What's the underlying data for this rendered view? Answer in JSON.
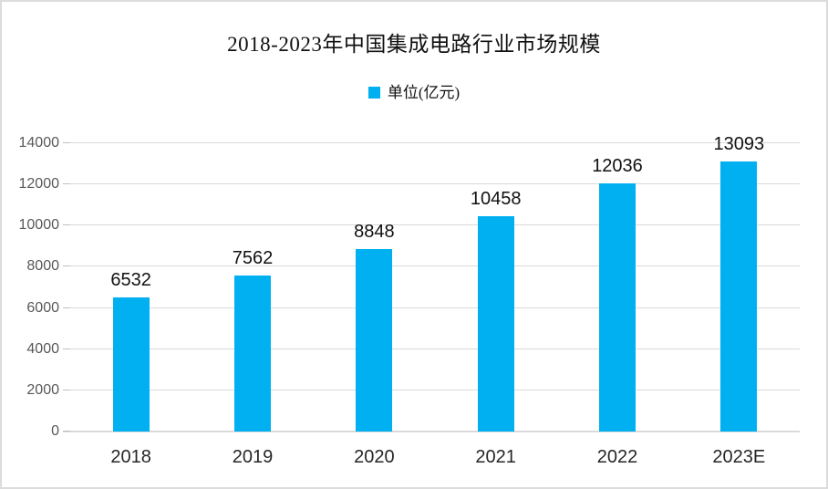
{
  "chart_data": {
    "type": "bar",
    "title": "2018-2023年中国集成电路行业市场规模",
    "legend_label": "单位(亿元)",
    "legend_position": "top",
    "categories": [
      "2018",
      "2019",
      "2020",
      "2021",
      "2022",
      "2023E"
    ],
    "values": [
      6532,
      7562,
      8848,
      10458,
      12036,
      13093
    ],
    "xlabel": "",
    "ylabel": "",
    "ylim": [
      0,
      14000
    ],
    "yticks": [
      0,
      2000,
      4000,
      6000,
      8000,
      10000,
      12000,
      14000
    ],
    "grid": true,
    "bar_color": "#00B0F0"
  },
  "colors": {
    "bar": "#00B0F0",
    "gridline": "#d9d9d9",
    "axis_line": "#d9d9d9",
    "tick": "#bfbfbf",
    "y_label": "#595959",
    "x_label": "#262626",
    "value_label": "#111111",
    "background": "#ffffff",
    "border": "#dcdcdc"
  }
}
